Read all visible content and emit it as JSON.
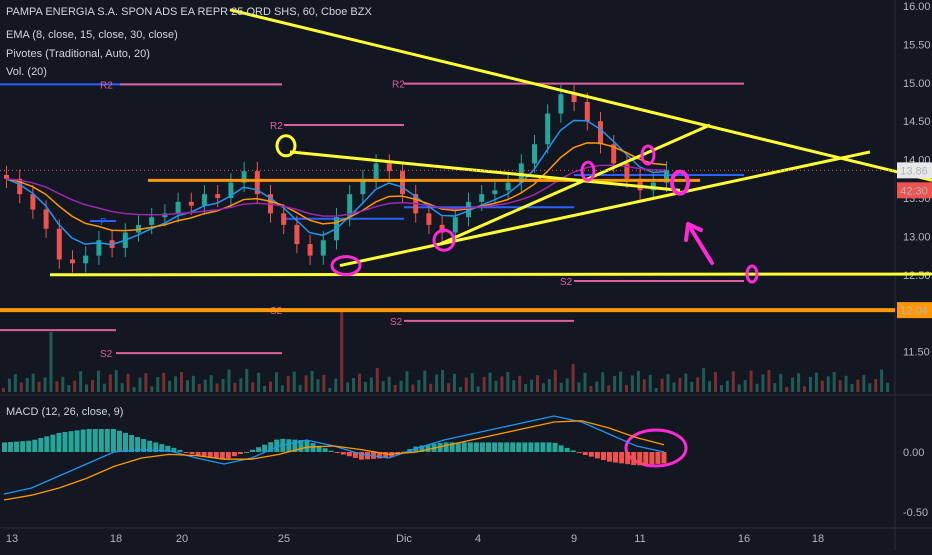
{
  "legend": {
    "title": "PAMPA ENERGIA S.A. SPON ADS EA REPR 25 ORD SHS, 60, Cboe BZX",
    "ema": "EMA (8, close, 15, close, 30, close)",
    "pivots": "Pivotes (Traditional, Auto, 20)",
    "vol": "Vol. (20)",
    "macd": "MACD (12, 26, close, 9)"
  },
  "colors": {
    "background": "#131722",
    "up": "#26a69a",
    "down": "#ef5350",
    "ema_fast": "#2196f3",
    "ema_mid": "#ff9800",
    "ema_slow": "#9c27b0",
    "drawing_yellow": "#ffff33",
    "drawing_magenta": "#ff2ad6",
    "orange_line": "#ff9800",
    "pivot_pink": "#e05f9c",
    "pivot_blue": "#2962ff"
  },
  "chart_data": [
    {
      "type": "candlestick",
      "title": "PAMPA ENERGIA S.A. SPON ADS EA REPR 25 ORD SHS, 60, Cboe BZX",
      "x_ticks": [
        "13",
        "18",
        "20",
        "25",
        "Dic",
        "4",
        "9",
        "11",
        "16",
        "18"
      ],
      "ylim": [
        11.2,
        16.05
      ],
      "y_ticks": [
        11.5,
        12.0,
        12.5,
        13.0,
        13.5,
        14.0,
        14.5,
        15.0,
        15.5,
        16.0
      ],
      "y_tick_labels": [
        "11.50",
        "12.00",
        "12.50",
        "13.00",
        "13.50",
        "14.00",
        "14.50",
        "15.00",
        "15.50",
        "16.00"
      ],
      "last_price": "13.86",
      "countdown": "42:30",
      "orange_level": "12.04",
      "orange_level_value": 12.04,
      "pivot_labels": [
        "R2",
        "R2",
        "R2",
        "S2",
        "S2",
        "S2",
        "S2",
        "P"
      ],
      "close_approx": [
        13.75,
        13.55,
        13.35,
        13.1,
        12.7,
        12.65,
        12.75,
        12.95,
        12.85,
        13.05,
        13.15,
        13.25,
        13.3,
        13.45,
        13.4,
        13.55,
        13.5,
        13.7,
        13.85,
        13.55,
        13.3,
        13.15,
        12.9,
        12.75,
        12.95,
        13.25,
        13.55,
        13.75,
        13.95,
        13.85,
        13.55,
        13.3,
        13.15,
        13.05,
        13.25,
        13.45,
        13.55,
        13.6,
        13.7,
        13.95,
        14.2,
        14.6,
        14.85,
        14.75,
        14.5,
        14.2,
        13.95,
        13.75,
        13.6,
        13.7,
        13.86
      ]
    },
    {
      "type": "bar",
      "title": "Vol. (20)",
      "note": "volume histogram below price panel"
    },
    {
      "type": "macd",
      "title": "MACD (12, 26, close, 9)",
      "ylim": [
        -0.6,
        0.4
      ],
      "y_ticks": [
        0.0,
        -0.5
      ],
      "y_tick_labels": [
        "0.00",
        "-0.50"
      ],
      "macd_approx": [
        -0.35,
        -0.3,
        -0.2,
        -0.1,
        0.0,
        0.02,
        0.01,
        -0.05,
        -0.1,
        -0.05,
        0.05,
        0.1,
        0.05,
        -0.02,
        -0.05,
        0.03,
        0.1,
        0.15,
        0.2,
        0.25,
        0.3,
        0.25,
        0.15,
        0.05,
        0.0
      ],
      "signal_approx": [
        -0.4,
        -0.36,
        -0.3,
        -0.22,
        -0.12,
        -0.05,
        -0.02,
        -0.03,
        -0.06,
        -0.06,
        -0.02,
        0.04,
        0.05,
        0.02,
        -0.02,
        0.0,
        0.05,
        0.1,
        0.15,
        0.2,
        0.25,
        0.26,
        0.2,
        0.12,
        0.06
      ]
    }
  ]
}
